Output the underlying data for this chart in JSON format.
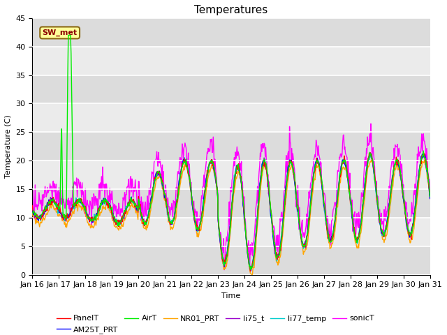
{
  "title": "Temperatures",
  "xlabel": "Time",
  "ylabel": "Temperature (C)",
  "ylim": [
    0,
    45
  ],
  "yticks": [
    0,
    5,
    10,
    15,
    20,
    25,
    30,
    35,
    40,
    45
  ],
  "xlim": [
    0,
    15
  ],
  "xtick_labels": [
    "Jan 16",
    "Jan 17",
    "Jan 18",
    "Jan 19",
    "Jan 20",
    "Jan 21",
    "Jan 22",
    "Jan 23",
    "Jan 24",
    "Jan 25",
    "Jan 26",
    "Jan 27",
    "Jan 28",
    "Jan 29",
    "Jan 30",
    "Jan 31"
  ],
  "annotation_text": "SW_met",
  "annotation_color": "#8B0000",
  "annotation_bg": "#FFFF99",
  "series": {
    "PanelT": {
      "color": "#FF0000",
      "lw": 1.0
    },
    "AM25T_PRT": {
      "color": "#0000FF",
      "lw": 1.0
    },
    "AirT": {
      "color": "#00EE00",
      "lw": 1.0
    },
    "NR01_PRT": {
      "color": "#FFA500",
      "lw": 1.0
    },
    "li75_t": {
      "color": "#9900CC",
      "lw": 1.0
    },
    "li77_temp": {
      "color": "#00CCCC",
      "lw": 1.0
    },
    "sonicT": {
      "color": "#FF00FF",
      "lw": 1.0
    }
  },
  "band_colors": [
    "#DCDCDC",
    "#EBEBEB"
  ],
  "bg_color": "#DCDCDC",
  "grid_color": "#FFFFFF",
  "title_fontsize": 11,
  "axis_fontsize": 8,
  "legend_fontsize": 8
}
